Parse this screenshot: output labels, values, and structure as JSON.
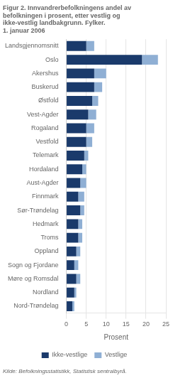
{
  "chart_data": {
    "type": "bar",
    "orientation": "horizontal",
    "stacked": true,
    "title": [
      "Figur 2. Innvandrerbefolkningens andel av",
      "befolkningen i prosent, etter vestlig og",
      "ikke-vestlig landbakgrunn. Fylker.",
      "1. januar 2006"
    ],
    "x_label": "Prosent",
    "annotations": [
      "Kilde: Befolkningsstatistikk, Statistisk sentralbyrå."
    ],
    "categories": [
      "Landsgjennomsnitt",
      "Oslo",
      "Akershus",
      "Buskerud",
      "Østfold",
      "Vest-Agder",
      "Rogaland",
      "Vestfold",
      "Telemark",
      "Hordaland",
      "Aust-Agder",
      "Finnmark",
      "Sør-Trøndelag",
      "Hedmark",
      "Troms",
      "Oppland",
      "Sogn og Fjordane",
      "Møre og Romsdal",
      "Nordland",
      "Nord-Trøndelag"
    ],
    "series": [
      {
        "name": "Ikke-vestlige",
        "color": "#1a3a6b",
        "values": [
          5.0,
          19.0,
          7.0,
          7.0,
          6.5,
          5.5,
          5.0,
          5.0,
          4.5,
          4.0,
          3.5,
          3.0,
          3.5,
          3.0,
          3.0,
          2.5,
          2.0,
          2.5,
          2.0,
          1.5
        ]
      },
      {
        "name": "Vestlige",
        "color": "#8fafd4",
        "values": [
          2.0,
          4.0,
          3.0,
          2.0,
          1.5,
          2.0,
          2.0,
          1.5,
          1.0,
          1.0,
          1.5,
          1.5,
          1.0,
          1.0,
          1.0,
          1.0,
          1.0,
          1.0,
          0.5,
          0.5
        ]
      }
    ],
    "xlim": [
      0,
      25
    ],
    "xticks": [
      0,
      5,
      10,
      15,
      20,
      25
    ],
    "grid": true,
    "legend": "bottom"
  }
}
